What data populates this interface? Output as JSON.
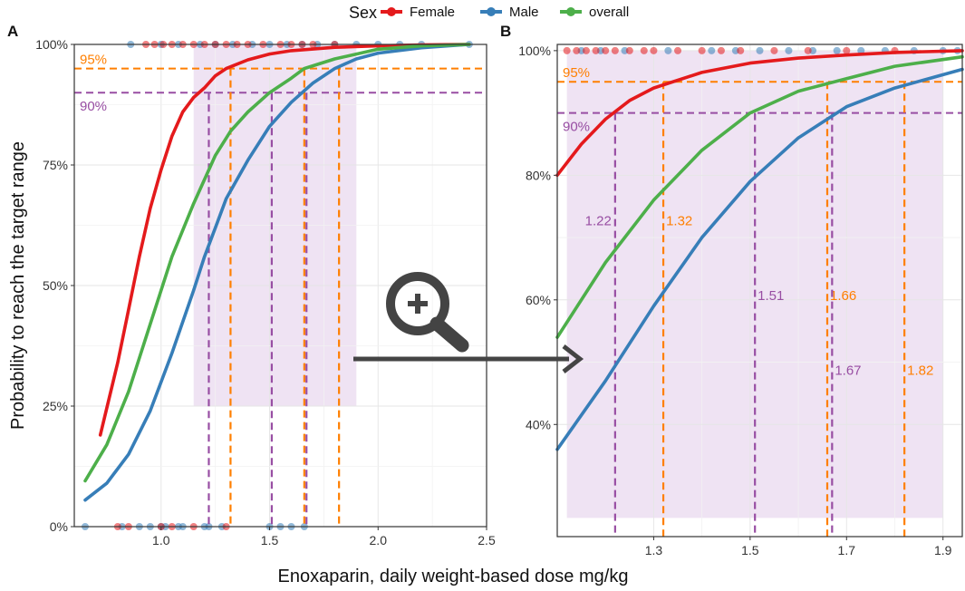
{
  "legend": {
    "title": "Sex",
    "items": [
      {
        "label": "Female",
        "color": "#e41a1c"
      },
      {
        "label": "Male",
        "color": "#377eb8"
      },
      {
        "label": "overall",
        "color": "#4daf4a"
      }
    ]
  },
  "colors": {
    "orange": "#ff7f00",
    "purple": "#984ea3",
    "shade": "#efe3f3",
    "zoom": "#444444"
  },
  "ylabel": "Probability to reach the target range",
  "xlabel": "Enoxaparin, daily weight-based dose mg/kg",
  "chart_data": [
    {
      "type": "line",
      "panel": "A",
      "xlim": [
        0.6,
        2.5
      ],
      "ylim": [
        0,
        1
      ],
      "x_ticks": [
        1.0,
        1.5,
        2.0,
        2.5
      ],
      "x_tick_labels": [
        "1.0",
        "1.5",
        "2.0",
        "2.5"
      ],
      "y_ticks": [
        0,
        0.25,
        0.5,
        0.75,
        1.0
      ],
      "y_tick_labels": [
        "0%",
        "25%",
        "50%",
        "75%",
        "100%"
      ],
      "grid": true,
      "series": [
        {
          "name": "Female",
          "x": [
            0.72,
            0.8,
            0.85,
            0.9,
            0.95,
            1.0,
            1.05,
            1.1,
            1.15,
            1.2,
            1.25,
            1.3,
            1.4,
            1.5,
            1.6,
            1.8,
            2.0,
            2.2,
            2.42
          ],
          "y": [
            0.19,
            0.34,
            0.45,
            0.56,
            0.66,
            0.74,
            0.81,
            0.86,
            0.89,
            0.91,
            0.935,
            0.95,
            0.968,
            0.98,
            0.987,
            0.994,
            0.997,
            0.999,
            1.0
          ]
        },
        {
          "name": "Male",
          "x": [
            0.65,
            0.75,
            0.85,
            0.95,
            1.05,
            1.15,
            1.2,
            1.25,
            1.3,
            1.4,
            1.5,
            1.6,
            1.7,
            1.8,
            1.9,
            2.0,
            2.2,
            2.42
          ],
          "y": [
            0.055,
            0.09,
            0.15,
            0.24,
            0.36,
            0.49,
            0.56,
            0.62,
            0.68,
            0.76,
            0.83,
            0.88,
            0.92,
            0.95,
            0.97,
            0.982,
            0.993,
            1.0
          ]
        },
        {
          "name": "overall",
          "x": [
            0.65,
            0.75,
            0.85,
            0.95,
            1.05,
            1.15,
            1.2,
            1.25,
            1.32,
            1.4,
            1.5,
            1.6,
            1.66,
            1.8,
            2.0,
            2.2,
            2.42
          ],
          "y": [
            0.095,
            0.17,
            0.28,
            0.42,
            0.56,
            0.67,
            0.72,
            0.77,
            0.82,
            0.86,
            0.9,
            0.93,
            0.95,
            0.97,
            0.99,
            0.997,
            1.0
          ]
        }
      ],
      "points": {
        "Female": {
          "y1": [
            0.93,
            0.97,
            1.01,
            1.05,
            1.1,
            1.15,
            1.2,
            1.25,
            1.3,
            1.35,
            1.4,
            1.47,
            1.55,
            1.6,
            1.65,
            1.7,
            1.8
          ],
          "y0": [
            0.8,
            0.85,
            1.0,
            1.05,
            1.15,
            1.3
          ]
        },
        "Male": {
          "y1": [
            0.86,
            1.0,
            1.08,
            1.18,
            1.25,
            1.33,
            1.42,
            1.5,
            1.58,
            1.65,
            1.72,
            1.8,
            1.9,
            2.0,
            2.1,
            2.2,
            2.42
          ],
          "y0": [
            0.65,
            0.82,
            0.9,
            0.95,
            1.0,
            1.02,
            1.08,
            1.1,
            1.2,
            1.22,
            1.28,
            1.5,
            1.55,
            1.6,
            1.66
          ]
        },
        "overall": {
          "y1": [],
          "y0": []
        }
      },
      "shaded_region": {
        "x": [
          1.15,
          1.9
        ],
        "y": [
          0.25,
          1.0
        ]
      },
      "reference_lines": [
        {
          "axis": "y",
          "value": 0.95,
          "color": "orange",
          "label": "95%"
        },
        {
          "axis": "y",
          "value": 0.9,
          "color": "purple",
          "label": "90%"
        }
      ],
      "drop_lines": [
        {
          "x": 1.22,
          "color": "purple",
          "top": 0.9
        },
        {
          "x": 1.32,
          "color": "orange",
          "top": 0.95
        },
        {
          "x": 1.51,
          "color": "purple",
          "top": 0.9
        },
        {
          "x": 1.66,
          "color": "orange",
          "top": 0.95
        },
        {
          "x": 1.67,
          "color": "purple",
          "top": 0.9
        },
        {
          "x": 1.82,
          "color": "orange",
          "top": 0.95
        }
      ]
    },
    {
      "type": "line",
      "panel": "B",
      "xlim": [
        1.1,
        1.94
      ],
      "ylim": [
        0.22,
        1.01
      ],
      "x_ticks": [
        1.3,
        1.5,
        1.7,
        1.9
      ],
      "x_tick_labels": [
        "1.3",
        "1.5",
        "1.7",
        "1.9"
      ],
      "y_ticks": [
        0.4,
        0.6,
        0.8,
        1.0
      ],
      "y_tick_labels": [
        "40%",
        "60%",
        "80%",
        "100%"
      ],
      "grid": true,
      "series": [
        {
          "name": "Female",
          "x": [
            1.1,
            1.15,
            1.2,
            1.25,
            1.3,
            1.4,
            1.5,
            1.6,
            1.7,
            1.8,
            1.94
          ],
          "y": [
            0.8,
            0.85,
            0.89,
            0.92,
            0.94,
            0.965,
            0.98,
            0.988,
            0.993,
            0.997,
            1.0
          ]
        },
        {
          "name": "Male",
          "x": [
            1.1,
            1.2,
            1.3,
            1.4,
            1.5,
            1.6,
            1.7,
            1.8,
            1.94
          ],
          "y": [
            0.36,
            0.47,
            0.59,
            0.7,
            0.79,
            0.86,
            0.91,
            0.94,
            0.97
          ]
        },
        {
          "name": "overall",
          "x": [
            1.1,
            1.2,
            1.3,
            1.4,
            1.5,
            1.6,
            1.7,
            1.8,
            1.94
          ],
          "y": [
            0.54,
            0.66,
            0.76,
            0.84,
            0.9,
            0.935,
            0.955,
            0.975,
            0.99
          ]
        }
      ],
      "points": {
        "Female": {
          "y1": [
            1.12,
            1.14,
            1.16,
            1.18,
            1.2,
            1.22,
            1.25,
            1.28,
            1.3,
            1.35,
            1.4,
            1.44,
            1.48,
            1.55,
            1.62,
            1.7,
            1.8
          ],
          "y0": []
        },
        "Male": {
          "y1": [
            1.15,
            1.19,
            1.24,
            1.33,
            1.42,
            1.47,
            1.52,
            1.58,
            1.63,
            1.68,
            1.73,
            1.78,
            1.84,
            1.9,
            1.93
          ],
          "y0": []
        },
        "overall": {
          "y1": [],
          "y0": []
        }
      },
      "shaded_region": {
        "x": [
          1.12,
          1.9
        ],
        "y": [
          0.25,
          1.0
        ]
      },
      "reference_lines": [
        {
          "axis": "y",
          "value": 0.95,
          "color": "orange",
          "label": "95%"
        },
        {
          "axis": "y",
          "value": 0.9,
          "color": "purple",
          "label": "90%"
        }
      ],
      "drop_lines": [
        {
          "x": 1.22,
          "color": "purple",
          "top": 0.9,
          "label": "1.22",
          "label_y": 0.72
        },
        {
          "x": 1.32,
          "color": "orange",
          "top": 0.95,
          "label": "1.32",
          "label_y": 0.72
        },
        {
          "x": 1.51,
          "color": "purple",
          "top": 0.9,
          "label": "1.51",
          "label_y": 0.6
        },
        {
          "x": 1.66,
          "color": "orange",
          "top": 0.95,
          "label": "1.66",
          "label_y": 0.6
        },
        {
          "x": 1.67,
          "color": "purple",
          "top": 0.9,
          "label": "1.67",
          "label_y": 0.48
        },
        {
          "x": 1.82,
          "color": "orange",
          "top": 0.95,
          "label": "1.82",
          "label_y": 0.48
        }
      ]
    }
  ]
}
